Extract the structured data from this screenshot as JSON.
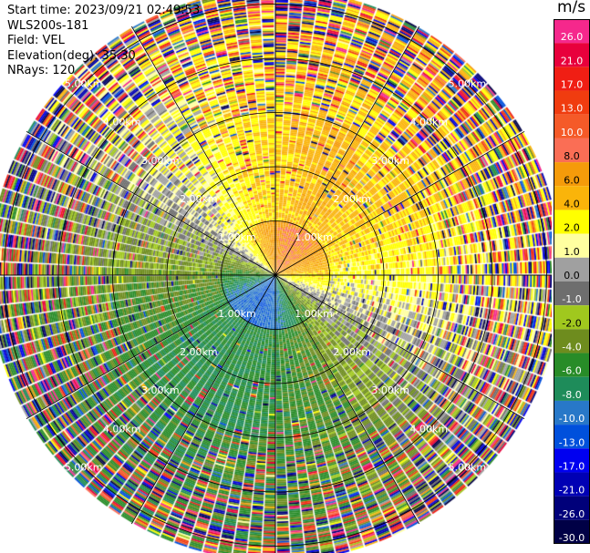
{
  "header": {
    "start_time": "Start time: 2023/09/21 02:49:53",
    "instrument": "WLS200s-181",
    "field": "Field: VEL",
    "elevation": "Elevation(deg): 35.30",
    "nrays": "NRays: 120"
  },
  "colorbar": {
    "unit": "m/s",
    "bins": [
      {
        "label": "26.0",
        "color": "#f5288c"
      },
      {
        "label": "21.0",
        "color": "#e8003c"
      },
      {
        "label": "17.0",
        "color": "#f01e14"
      },
      {
        "label": "13.0",
        "color": "#f03c0f"
      },
      {
        "label": "10.0",
        "color": "#f55a28"
      },
      {
        "label": "8.0",
        "color": "#fa6e55"
      },
      {
        "label": "6.0",
        "color": "#f59b0a"
      },
      {
        "label": "4.0",
        "color": "#fab40a"
      },
      {
        "label": "2.0",
        "color": "#ffff00"
      },
      {
        "label": "1.0",
        "color": "#ffffa0"
      },
      {
        "label": "0.0",
        "color": "#a0a0a0"
      },
      {
        "label": "-1.0",
        "color": "#6e6e6e"
      },
      {
        "label": "-2.0",
        "color": "#a0c81e"
      },
      {
        "label": "-4.0",
        "color": "#6e8c1e"
      },
      {
        "label": "-6.0",
        "color": "#288c28"
      },
      {
        "label": "-8.0",
        "color": "#1e8c5a"
      },
      {
        "label": "-10.0",
        "color": "#2878c8"
      },
      {
        "label": "-13.0",
        "color": "#0050dc"
      },
      {
        "label": "-17.0",
        "color": "#0000f0"
      },
      {
        "label": "-21.0",
        "color": "#0000b4"
      },
      {
        "label": "-26.0",
        "color": "#00007a"
      },
      {
        "label": "-30.0",
        "color": "#000046"
      }
    ]
  },
  "chart_data": {
    "type": "heatmap",
    "projection": "polar PPI",
    "field": "VEL",
    "unit": "m/s",
    "nrays": 120,
    "range_rings_km": [
      1.0,
      2.0,
      3.0,
      4.0,
      5.0
    ],
    "ring_labels": [
      "1.00km",
      "2.00km",
      "3.00km",
      "4.00km",
      "5.00km"
    ],
    "max_range_km": 5.3,
    "azimuth_spokes_deg": [
      0,
      30,
      60,
      90,
      120,
      150,
      180,
      210,
      240,
      270,
      300,
      330
    ],
    "velocity_pattern": {
      "inner_core_0_1km": {
        "north_east": 8.0,
        "south_west": -10.0
      },
      "mid_1_3km": {
        "north_east": 5.0,
        "south_west": -6.0
      },
      "outer_3_5km": "noisy mixed values",
      "zero_line_azimuth_deg": [
        120,
        300
      ]
    }
  }
}
